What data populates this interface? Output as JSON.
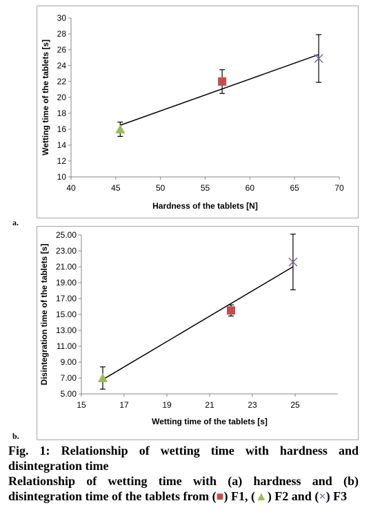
{
  "caption": {
    "title_line1": "Fig. 1: Relationship of wetting time with hardness and",
    "title_line2": "disintegration time",
    "desc_line1": "Relationship of wetting time with (a) hardness and (b)",
    "desc_part1": "disintegration time of the tablets from (",
    "desc_sym1": "■",
    "desc_part2": ") F1, (",
    "desc_sym2": "▲",
    "desc_part3": ") F2 and (",
    "desc_sym3": "×",
    "desc_part4": ") F3"
  },
  "colors": {
    "F1": "#c0504d",
    "F2": "#9bbb59",
    "F3": "#8064a2",
    "line": "#000000",
    "frame": "#a6a6a6"
  },
  "chart_data": [
    {
      "panel_label": "a.",
      "type": "scatter",
      "xlabel": "Hardness of the tablets [N]",
      "ylabel": "Wetting time of the tablets [s]",
      "xlim": [
        40,
        70
      ],
      "ylim": [
        10,
        30
      ],
      "x_ticks": [
        "40",
        "45",
        "50",
        "55",
        "60",
        "65",
        "70"
      ],
      "y_ticks": [
        "10",
        "12",
        "14",
        "16",
        "18",
        "20",
        "22",
        "24",
        "26",
        "28",
        "30"
      ],
      "grid": false,
      "series": [
        {
          "marker": "triangle",
          "color": "#9bbb59",
          "x": 45.5,
          "y": 16.0,
          "err": 0.9
        },
        {
          "marker": "square",
          "color": "#c0504d",
          "x": 56.9,
          "y": 22.0,
          "err": 1.5
        },
        {
          "marker": "x",
          "color": "#8064a2",
          "x": 67.7,
          "y": 24.9,
          "err": 3.0
        }
      ],
      "trendline": {
        "x": [
          45.5,
          67.7
        ],
        "y": [
          16.5,
          25.4
        ]
      }
    },
    {
      "panel_label": "b.",
      "type": "scatter",
      "xlabel": "Wetting time of the tablets [s]",
      "ylabel": "Disintegration time of the tablets [s]",
      "xlim": [
        15,
        27
      ],
      "ylim": [
        5,
        25
      ],
      "x_ticks": [
        "15",
        "17",
        "19",
        "21",
        "23",
        "25"
      ],
      "y_ticks": [
        "5.00",
        "7.00",
        "9.00",
        "11.00",
        "13.00",
        "15.00",
        "17.00",
        "19.00",
        "21.00",
        "23.00",
        "25.00"
      ],
      "grid": false,
      "series": [
        {
          "marker": "triangle",
          "color": "#9bbb59",
          "x": 16.0,
          "y": 7.0,
          "err": 1.4
        },
        {
          "marker": "square",
          "color": "#c0504d",
          "x": 22.0,
          "y": 15.5,
          "err": 0.7
        },
        {
          "marker": "x",
          "color": "#8064a2",
          "x": 24.9,
          "y": 21.6,
          "err": 3.5
        }
      ],
      "trendline": {
        "x": [
          16.0,
          24.9
        ],
        "y": [
          6.8,
          21.0
        ]
      }
    }
  ]
}
